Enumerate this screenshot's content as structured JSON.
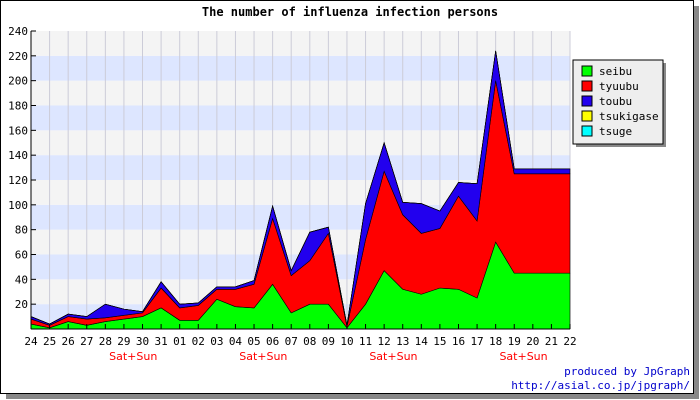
{
  "chart_data": {
    "type": "area",
    "stacked": true,
    "title": "The number of influenza infection persons",
    "categories": [
      "24",
      "25",
      "26",
      "27",
      "28",
      "29",
      "30",
      "31",
      "01",
      "02",
      "03",
      "04",
      "05",
      "06",
      "07",
      "08",
      "09",
      "10",
      "11",
      "12",
      "13",
      "14",
      "15",
      "16",
      "17",
      "18",
      "19",
      "20",
      "21",
      "22"
    ],
    "weekend_labels": [
      {
        "index": 5,
        "text": "Sat+Sun"
      },
      {
        "index": 12,
        "text": "Sat+Sun"
      },
      {
        "index": 19,
        "text": "Sat+Sun"
      },
      {
        "index": 26,
        "text": "Sat+Sun"
      }
    ],
    "ylim": [
      0,
      240
    ],
    "ytick_step": 20,
    "legend_position": "top-right",
    "series": [
      {
        "name": "seibu",
        "color": "#00ff00",
        "values": [
          4,
          1,
          6,
          3,
          6,
          8,
          10,
          17,
          7,
          7,
          24,
          18,
          17,
          36,
          13,
          20,
          20,
          1,
          20,
          47,
          32,
          28,
          33,
          32,
          25,
          70,
          45,
          45,
          45,
          45
        ]
      },
      {
        "name": "tyuubu",
        "color": "#ff0000",
        "values": [
          4,
          2,
          4,
          5,
          3,
          3,
          3,
          16,
          10,
          12,
          8,
          14,
          19,
          53,
          30,
          35,
          57,
          1,
          52,
          80,
          60,
          49,
          48,
          75,
          62,
          130,
          80,
          80,
          80,
          80
        ]
      },
      {
        "name": "toubu",
        "color": "#2200ee",
        "values": [
          2,
          1,
          2,
          2,
          11,
          5,
          1,
          5,
          3,
          2,
          2,
          2,
          3,
          10,
          4,
          23,
          5,
          1,
          29,
          23,
          10,
          24,
          14,
          11,
          30,
          24,
          4,
          4,
          4,
          4
        ]
      },
      {
        "name": "tsukigase",
        "color": "#ffff00",
        "values": [
          0,
          0,
          0,
          0,
          0,
          0,
          0,
          0,
          0,
          0,
          0,
          0,
          0,
          0,
          0,
          0,
          0,
          0,
          0,
          0,
          0,
          0,
          0,
          0,
          0,
          0,
          0,
          0,
          0,
          0
        ]
      },
      {
        "name": "tsuge",
        "color": "#00ffff",
        "values": [
          0,
          0,
          0,
          0,
          0,
          0,
          0,
          0,
          0,
          0,
          0,
          0,
          0,
          0,
          0,
          0,
          0,
          0,
          0,
          0,
          0,
          0,
          0,
          0,
          0,
          0,
          0,
          0,
          0,
          0
        ]
      }
    ]
  },
  "credit": {
    "line1": "produced by JpGraph",
    "line2": "http://asial.co.jp/jpgraph/"
  }
}
